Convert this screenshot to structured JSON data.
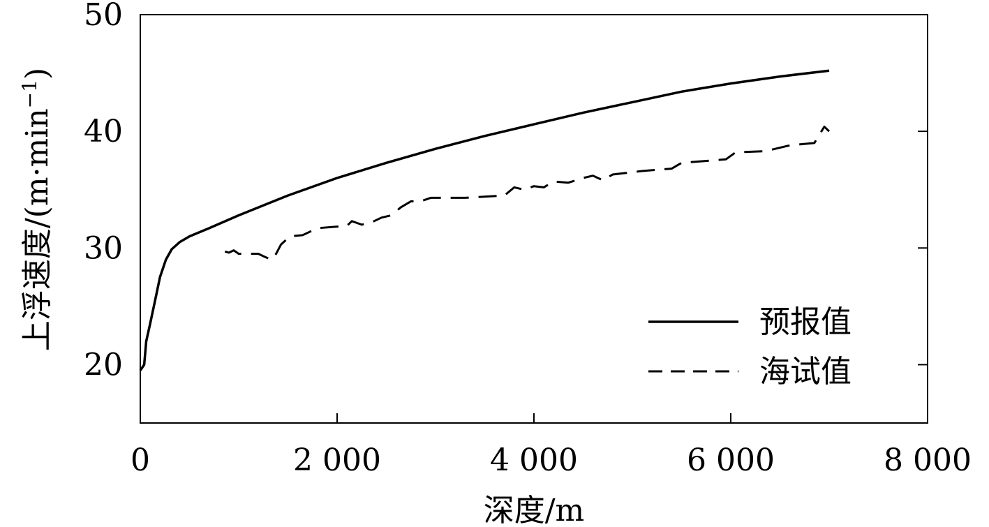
{
  "chart_data": {
    "type": "line",
    "xlabel": "深度/m",
    "ylabel": "上浮速度/(m·min",
    "ylabel_superscript": "−1",
    "ylabel_close": ")",
    "xlim": [
      0,
      8000
    ],
    "ylim": [
      15,
      50
    ],
    "x_ticks": [
      {
        "value": 0,
        "label": "0"
      },
      {
        "value": 2000,
        "label": "2 000"
      },
      {
        "value": 4000,
        "label": "4 000"
      },
      {
        "value": 6000,
        "label": "6 000"
      },
      {
        "value": 8000,
        "label": "8 000"
      }
    ],
    "y_ticks": [
      {
        "value": 20,
        "label": "20"
      },
      {
        "value": 30,
        "label": "30"
      },
      {
        "value": 40,
        "label": "40"
      },
      {
        "value": 50,
        "label": "50"
      }
    ],
    "grid": false,
    "legend_position": "bottom-right",
    "series": [
      {
        "name": "预报值",
        "style": "solid",
        "color": "#000000",
        "points": [
          [
            0,
            19.5
          ],
          [
            40,
            20
          ],
          [
            60,
            22
          ],
          [
            100,
            23.5
          ],
          [
            150,
            25.5
          ],
          [
            200,
            27.5
          ],
          [
            260,
            29
          ],
          [
            320,
            29.9
          ],
          [
            400,
            30.5
          ],
          [
            500,
            31
          ],
          [
            700,
            31.7
          ],
          [
            1000,
            32.8
          ],
          [
            1500,
            34.5
          ],
          [
            2000,
            36
          ],
          [
            2500,
            37.3
          ],
          [
            3000,
            38.5
          ],
          [
            3500,
            39.6
          ],
          [
            4000,
            40.6
          ],
          [
            4500,
            41.6
          ],
          [
            5000,
            42.5
          ],
          [
            5500,
            43.4
          ],
          [
            6000,
            44.1
          ],
          [
            6500,
            44.7
          ],
          [
            7000,
            45.2
          ]
        ]
      },
      {
        "name": "海试值",
        "style": "dashed",
        "color": "#000000",
        "points": [
          [
            860,
            29.7
          ],
          [
            900,
            29.6
          ],
          [
            950,
            29.8
          ],
          [
            1000,
            29.5
          ],
          [
            1200,
            29.5
          ],
          [
            1250,
            29.3
          ],
          [
            1330,
            29.0
          ],
          [
            1380,
            29.5
          ],
          [
            1430,
            30.3
          ],
          [
            1520,
            31.0
          ],
          [
            1650,
            31.1
          ],
          [
            1800,
            31.7
          ],
          [
            2100,
            31.9
          ],
          [
            2150,
            32.3
          ],
          [
            2250,
            32.0
          ],
          [
            2350,
            32.2
          ],
          [
            2450,
            32.6
          ],
          [
            2550,
            32.8
          ],
          [
            2650,
            33.5
          ],
          [
            2750,
            34.0
          ],
          [
            2850,
            34.0
          ],
          [
            2950,
            34.3
          ],
          [
            3300,
            34.3
          ],
          [
            3700,
            34.5
          ],
          [
            3800,
            35.2
          ],
          [
            3900,
            35.0
          ],
          [
            4000,
            35.3
          ],
          [
            4100,
            35.2
          ],
          [
            4200,
            35.7
          ],
          [
            4350,
            35.6
          ],
          [
            4500,
            36.0
          ],
          [
            4600,
            36.2
          ],
          [
            4700,
            35.8
          ],
          [
            4800,
            36.3
          ],
          [
            5100,
            36.6
          ],
          [
            5400,
            36.8
          ],
          [
            5500,
            37.3
          ],
          [
            5950,
            37.6
          ],
          [
            6050,
            38.2
          ],
          [
            6350,
            38.3
          ],
          [
            6600,
            38.8
          ],
          [
            6850,
            39.0
          ],
          [
            6950,
            40.4
          ],
          [
            7000,
            40.0
          ]
        ]
      }
    ]
  }
}
